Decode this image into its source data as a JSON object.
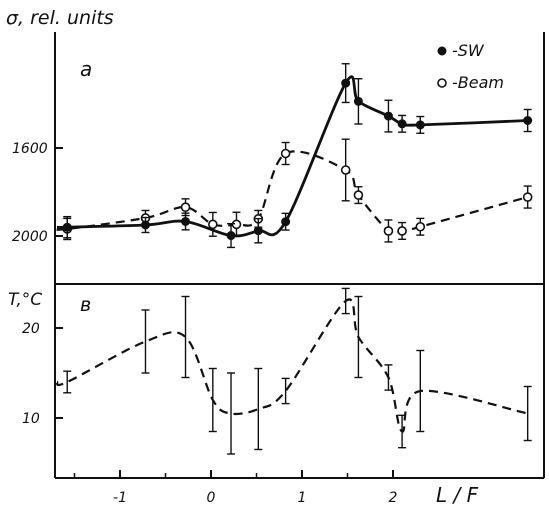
{
  "chart_data": [
    {
      "type": "line",
      "panel_label": "a",
      "ylabel": "σ, rel. units",
      "xlim": [
        -1.75,
        2.35
      ],
      "ylim": [
        2180,
        1460
      ],
      "y_ticks": [
        1600,
        2000
      ],
      "legend_position": "top-right",
      "series": [
        {
          "name": "-SW",
          "marker": "filled-circle",
          "line_style": "solid",
          "x": [
            -1.58,
            -0.72,
            -0.28,
            0.22,
            0.52,
            0.82,
            1.48,
            1.62,
            1.95,
            2.1,
            2.3,
            3.48
          ],
          "y": [
            1960,
            1950,
            1934,
            1998,
            1976,
            1935,
            1305,
            1388,
            1455,
            1490,
            1495,
            1475
          ],
          "err": [
            48,
            34,
            38,
            54,
            55,
            38,
            88,
            103,
            72,
            38,
            38,
            50
          ]
        },
        {
          "name": "-Beam",
          "marker": "open-circle",
          "line_style": "dashed",
          "x": [
            -1.58,
            -0.72,
            -0.28,
            0.02,
            0.28,
            0.52,
            0.82,
            1.48,
            1.62,
            1.95,
            2.1,
            2.3,
            3.48
          ],
          "y": [
            1968,
            1918,
            1869,
            1947,
            1947,
            1922,
            1625,
            1700,
            1814,
            1977,
            1977,
            1958,
            1823
          ],
          "err": [
            48,
            34,
            38,
            54,
            55,
            38,
            50,
            140,
            38,
            50,
            38,
            38,
            50
          ]
        }
      ]
    },
    {
      "type": "line",
      "panel_label": "в",
      "ylabel": "T,°C",
      "xlabel": "L / F",
      "xlim": [
        -1.75,
        2.35
      ],
      "x_ticks": [
        -1,
        0,
        1,
        2
      ],
      "ylim": [
        3,
        25
      ],
      "y_ticks": [
        10,
        20
      ],
      "series": [
        {
          "marker": "none",
          "line_style": "dashed",
          "x": [
            -1.58,
            -0.72,
            -0.28,
            0.02,
            0.22,
            0.52,
            0.82,
            1.48,
            1.62,
            1.95,
            2.1,
            2.3,
            3.48
          ],
          "y": [
            14,
            18.5,
            19,
            12,
            10.5,
            11,
            13,
            23,
            19,
            14.5,
            8.5,
            13,
            10.5
          ],
          "err": [
            1.2,
            3.5,
            4.5,
            3.5,
            4.5,
            4.5,
            1.4,
            1.4,
            4.5,
            1.4,
            1.8,
            4.5,
            3
          ]
        }
      ]
    }
  ]
}
